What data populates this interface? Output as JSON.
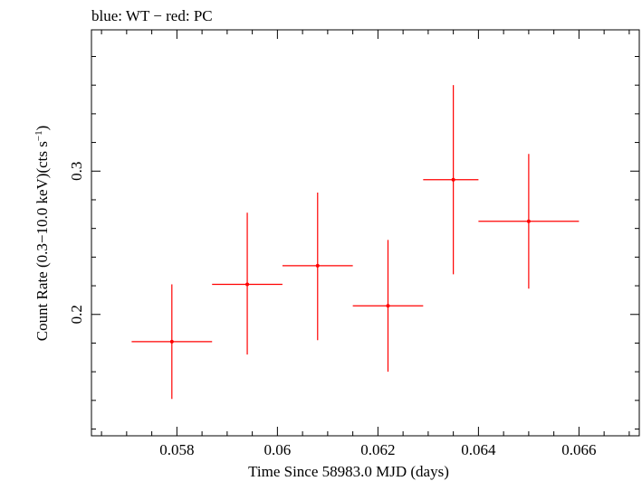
{
  "chart_data": {
    "type": "scatter",
    "title": "blue: WT − red: PC",
    "xlabel": "Time Since 58983.0 MJD (days)",
    "ylabel_parts": {
      "main": "Count Rate (0.3−10.0 keV)(cts s",
      "sup": "−1",
      "close": ")"
    },
    "xlim": [
      0.0563,
      0.0672
    ],
    "ylim": [
      0.1153,
      0.3986
    ],
    "x_ticks": [
      {
        "value": 0.058,
        "label": "0.058"
      },
      {
        "value": 0.06,
        "label": "0.06"
      },
      {
        "value": 0.062,
        "label": "0.062"
      },
      {
        "value": 0.064,
        "label": "0.064"
      },
      {
        "value": 0.066,
        "label": "0.066"
      }
    ],
    "x_minor_step": 0.0005,
    "y_ticks": [
      {
        "value": 0.2,
        "label": "0.2"
      },
      {
        "value": 0.3,
        "label": "0.3"
      }
    ],
    "y_minor_step": 0.02,
    "grid": false,
    "series": [
      {
        "color": "#ff0000",
        "points": [
          {
            "x": 0.0579,
            "xlo": 0.0571,
            "xhi": 0.0587,
            "y": 0.181,
            "ylo": 0.141,
            "yhi": 0.221
          },
          {
            "x": 0.0594,
            "xlo": 0.0587,
            "xhi": 0.0601,
            "y": 0.221,
            "ylo": 0.172,
            "yhi": 0.271
          },
          {
            "x": 0.0608,
            "xlo": 0.0601,
            "xhi": 0.0615,
            "y": 0.234,
            "ylo": 0.182,
            "yhi": 0.285
          },
          {
            "x": 0.0622,
            "xlo": 0.0615,
            "xhi": 0.0629,
            "y": 0.206,
            "ylo": 0.16,
            "yhi": 0.252
          },
          {
            "x": 0.0635,
            "xlo": 0.0629,
            "xhi": 0.064,
            "y": 0.294,
            "ylo": 0.228,
            "yhi": 0.36
          },
          {
            "x": 0.065,
            "xlo": 0.064,
            "xhi": 0.066,
            "y": 0.265,
            "ylo": 0.218,
            "yhi": 0.312
          }
        ]
      }
    ]
  }
}
